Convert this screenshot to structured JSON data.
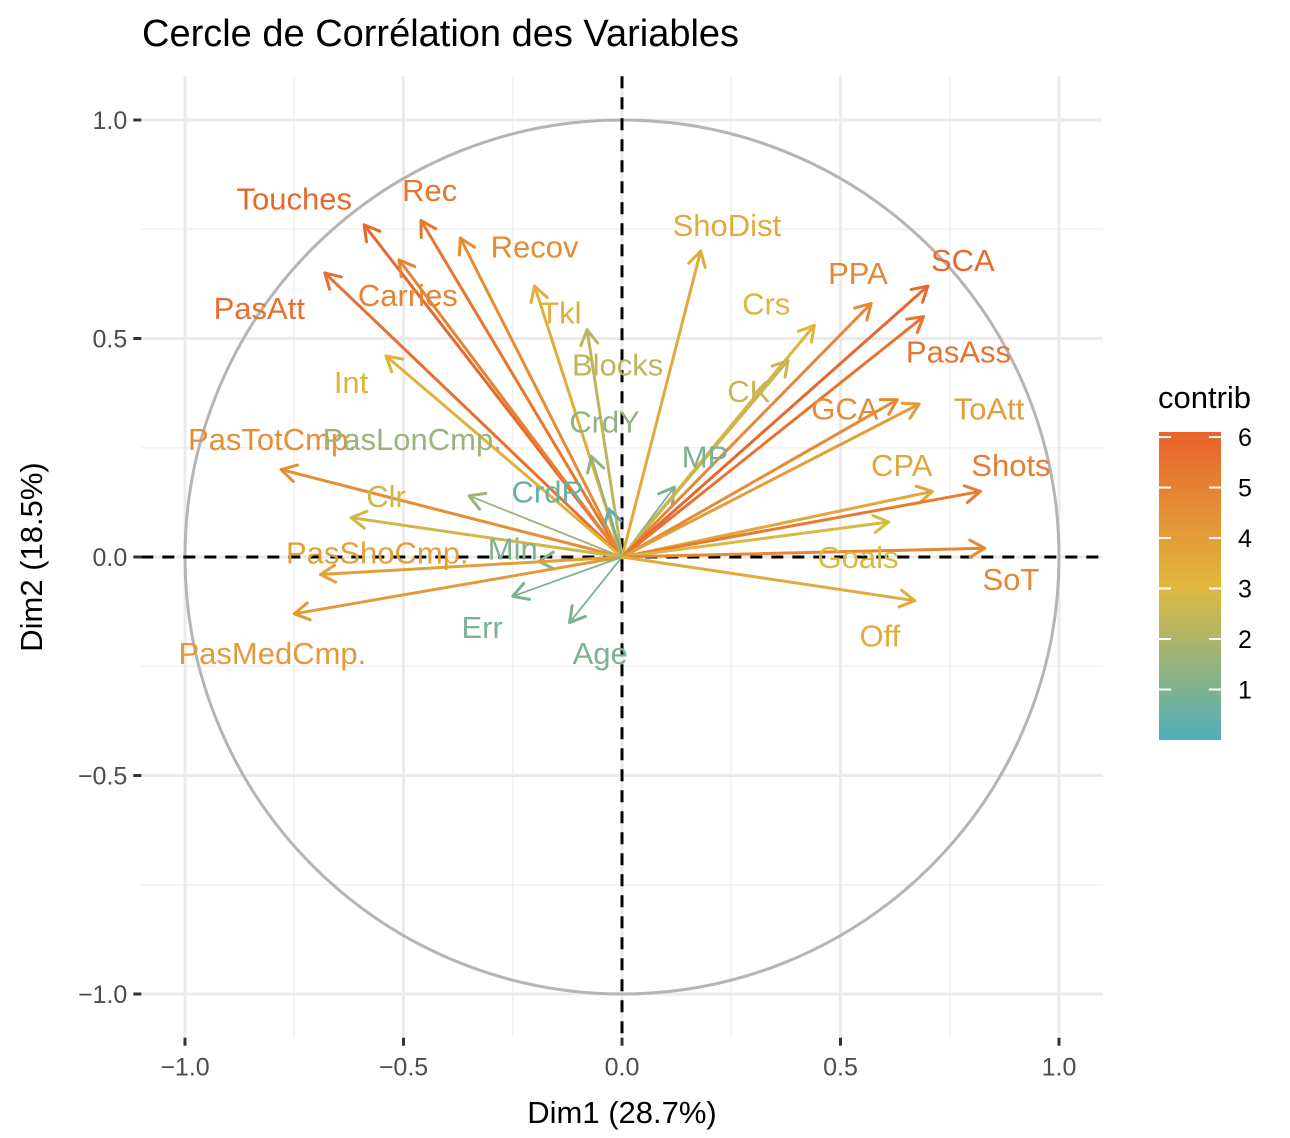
{
  "chart_data": {
    "type": "scatter",
    "subtype": "pca-correlation-circle",
    "title": "Cercle de Corrélation des Variables",
    "xlabel": "Dim1 (28.7%)",
    "ylabel": "Dim2 (18.5%)",
    "xlim": [
      -1.1,
      1.1
    ],
    "ylim": [
      -1.1,
      1.1
    ],
    "xticks": [
      -1.0,
      -0.5,
      0.0,
      0.5,
      1.0
    ],
    "yticks": [
      -1.0,
      -0.5,
      0.0,
      0.5,
      1.0
    ],
    "xtick_labels": [
      "−1.0",
      "−0.5",
      "0.0",
      "0.5",
      "1.0"
    ],
    "ytick_labels": [
      "−1.0",
      "−0.5",
      "0.0",
      "0.5",
      "1.0"
    ],
    "grid": true,
    "unit_circle": true,
    "reference_lines": {
      "x": 0,
      "y": 0,
      "style": "dashed"
    },
    "legend": {
      "title": "contrib",
      "placement": "right",
      "min": 0,
      "max": 6.1,
      "ticks": [
        1,
        2,
        3,
        4,
        5,
        6
      ],
      "colors": [
        "#4fafba",
        "#e0b83e",
        "#e8622c"
      ]
    },
    "variables": [
      {
        "name": "Touches",
        "x": -0.59,
        "y": 0.76,
        "contrib": 5.9,
        "lx": -0.75,
        "ly": 0.82
      },
      {
        "name": "Rec",
        "x": -0.46,
        "y": 0.77,
        "contrib": 5.4,
        "lx": -0.44,
        "ly": 0.84
      },
      {
        "name": "Recov",
        "x": -0.37,
        "y": 0.73,
        "contrib": 4.6,
        "lx": -0.2,
        "ly": 0.71
      },
      {
        "name": "Carries",
        "x": -0.51,
        "y": 0.68,
        "contrib": 4.9,
        "lx": -0.49,
        "ly": 0.6
      },
      {
        "name": "PasAtt",
        "x": -0.68,
        "y": 0.65,
        "contrib": 5.6,
        "lx": -0.83,
        "ly": 0.57
      },
      {
        "name": "Tkl",
        "x": -0.2,
        "y": 0.62,
        "contrib": 3.4,
        "lx": -0.14,
        "ly": 0.56
      },
      {
        "name": "Blocks",
        "x": -0.08,
        "y": 0.52,
        "contrib": 2.3,
        "lx": -0.01,
        "ly": 0.44
      },
      {
        "name": "Int",
        "x": -0.54,
        "y": 0.46,
        "contrib": 3.3,
        "lx": -0.62,
        "ly": 0.4
      },
      {
        "name": "CrdY",
        "x": -0.07,
        "y": 0.23,
        "contrib": 1.4,
        "lx": -0.04,
        "ly": 0.31
      },
      {
        "name": "PasTotCmp.",
        "x": -0.78,
        "y": 0.2,
        "contrib": 4.5,
        "lx": -0.8,
        "ly": 0.27
      },
      {
        "name": "PasLonCmp.",
        "x": -0.35,
        "y": 0.14,
        "contrib": 1.6,
        "lx": -0.48,
        "ly": 0.27
      },
      {
        "name": "CrdR",
        "x": -0.03,
        "y": 0.11,
        "contrib": 0.5,
        "lx": -0.17,
        "ly": 0.15
      },
      {
        "name": "Clr",
        "x": -0.62,
        "y": 0.09,
        "contrib": 2.7,
        "lx": -0.54,
        "ly": 0.14
      },
      {
        "name": "Min",
        "x": -0.19,
        "y": -0.01,
        "contrib": 1.1,
        "lx": -0.25,
        "ly": 0.02
      },
      {
        "name": "PasShoCmp.",
        "x": -0.69,
        "y": -0.04,
        "contrib": 3.9,
        "lx": -0.56,
        "ly": 0.01
      },
      {
        "name": "PasMedCmp.",
        "x": -0.75,
        "y": -0.13,
        "contrib": 4.1,
        "lx": -0.8,
        "ly": -0.22
      },
      {
        "name": "Err",
        "x": -0.25,
        "y": -0.09,
        "contrib": 0.9,
        "lx": -0.32,
        "ly": -0.16
      },
      {
        "name": "Age",
        "x": -0.12,
        "y": -0.15,
        "contrib": 0.9,
        "lx": -0.05,
        "ly": -0.22
      },
      {
        "name": "MP",
        "x": 0.12,
        "y": 0.16,
        "contrib": 0.9,
        "lx": 0.19,
        "ly": 0.23
      },
      {
        "name": "ShoDist",
        "x": 0.18,
        "y": 0.7,
        "contrib": 3.5,
        "lx": 0.24,
        "ly": 0.76
      },
      {
        "name": "Crs",
        "x": 0.44,
        "y": 0.53,
        "contrib": 3.2,
        "lx": 0.33,
        "ly": 0.58
      },
      {
        "name": "CK",
        "x": 0.38,
        "y": 0.45,
        "contrib": 2.5,
        "lx": 0.29,
        "ly": 0.38
      },
      {
        "name": "PPA",
        "x": 0.57,
        "y": 0.58,
        "contrib": 4.8,
        "lx": 0.54,
        "ly": 0.65
      },
      {
        "name": "SCA",
        "x": 0.7,
        "y": 0.62,
        "contrib": 5.9,
        "lx": 0.78,
        "ly": 0.68
      },
      {
        "name": "PasAss",
        "x": 0.69,
        "y": 0.55,
        "contrib": 5.5,
        "lx": 0.77,
        "ly": 0.47
      },
      {
        "name": "GCA",
        "x": 0.63,
        "y": 0.36,
        "contrib": 4.6,
        "lx": 0.51,
        "ly": 0.34
      },
      {
        "name": "ToAtt",
        "x": 0.68,
        "y": 0.35,
        "contrib": 4.0,
        "lx": 0.84,
        "ly": 0.34
      },
      {
        "name": "CPA",
        "x": 0.71,
        "y": 0.15,
        "contrib": 3.7,
        "lx": 0.64,
        "ly": 0.21
      },
      {
        "name": "Shots",
        "x": 0.82,
        "y": 0.15,
        "contrib": 5.2,
        "lx": 0.89,
        "ly": 0.21
      },
      {
        "name": "Goals",
        "x": 0.61,
        "y": 0.08,
        "contrib": 2.9,
        "lx": 0.54,
        "ly": 0.0
      },
      {
        "name": "SoT",
        "x": 0.83,
        "y": 0.02,
        "contrib": 4.8,
        "lx": 0.89,
        "ly": -0.05
      },
      {
        "name": "Off",
        "x": 0.67,
        "y": -0.1,
        "contrib": 3.5,
        "lx": 0.59,
        "ly": -0.18
      }
    ]
  }
}
